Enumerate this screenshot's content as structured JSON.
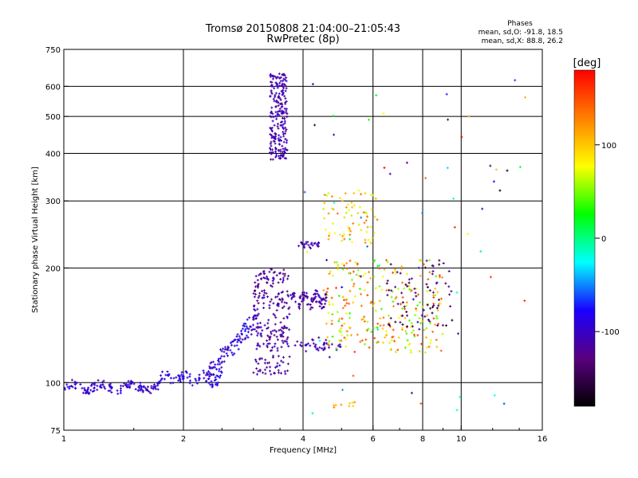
{
  "header": {
    "title": "Tromsø 20150808 21:04:00–21:05:43",
    "subtitle": "RwPretec (8p)"
  },
  "stats": {
    "heading": "Phases",
    "o_line": "mean, sd,O: -91.8, 18.5",
    "x_line": "mean, sd,X:  88.8, 26.2"
  },
  "colorbar": {
    "label": "[deg]",
    "range": [
      -180,
      180
    ],
    "ticks": [
      {
        "value": 100,
        "label": "100"
      },
      {
        "value": 0,
        "label": "0"
      },
      {
        "value": -100,
        "label": "-100"
      }
    ],
    "stops": [
      "#000000",
      "#5a0080",
      "#1a00ff",
      "#00ffff",
      "#00ff00",
      "#ffff00",
      "#ff8000",
      "#ff0000"
    ]
  },
  "chart_data": {
    "type": "scatter",
    "title": "Tromsø 20150808 21:04:00–21:05:43",
    "subtitle": "RwPretec (8p)",
    "xlabel": "Frequency [MHz]",
    "ylabel": "Stationary phase Virtual Height [km]",
    "x_scale": "log",
    "y_scale": "log",
    "xlim": [
      1,
      16
    ],
    "ylim": [
      75,
      750
    ],
    "x_ticks": [
      {
        "value": 1,
        "label": "1"
      },
      {
        "value": 2,
        "label": "2"
      },
      {
        "value": 4,
        "label": "4"
      },
      {
        "value": 6,
        "label": "6"
      },
      {
        "value": 8,
        "label": "8"
      },
      {
        "value": 10,
        "label": "10"
      },
      {
        "value": 16,
        "label": "16"
      }
    ],
    "y_ticks": [
      {
        "value": 75,
        "label": "75"
      },
      {
        "value": 100,
        "label": "100"
      },
      {
        "value": 200,
        "label": "200"
      },
      {
        "value": 300,
        "label": "300"
      },
      {
        "value": 400,
        "label": "400"
      },
      {
        "value": 500,
        "label": "500"
      },
      {
        "value": 600,
        "label": "600"
      },
      {
        "value": 750,
        "label": "750"
      }
    ],
    "grid_x": [
      2,
      4,
      6,
      8,
      10
    ],
    "grid_y": [
      100,
      200,
      300,
      400,
      500,
      600
    ],
    "color_scale": "phase [deg]",
    "clusters": [
      {
        "f": [
          1.0,
          1.75
        ],
        "h": [
          93,
          102
        ],
        "phase": [
          -115,
          -80
        ],
        "n": 140,
        "shape": "trace"
      },
      {
        "f": [
          1.75,
          2.5
        ],
        "h": [
          97,
          108
        ],
        "phase": [
          -110,
          -70
        ],
        "n": 80,
        "shape": "trace"
      },
      {
        "f": [
          2.3,
          3.1
        ],
        "h": [
          105,
          150
        ],
        "phase": [
          -115,
          -70
        ],
        "n": 110,
        "shape": "ramp"
      },
      {
        "f": [
          3.0,
          3.7
        ],
        "h": [
          105,
          200
        ],
        "phase": [
          -135,
          -95
        ],
        "n": 240,
        "shape": "fill"
      },
      {
        "f": [
          3.3,
          3.65
        ],
        "h": [
          385,
          650
        ],
        "phase": [
          -125,
          -95
        ],
        "n": 230,
        "shape": "column"
      },
      {
        "f": [
          3.7,
          4.6
        ],
        "h": [
          155,
          175
        ],
        "phase": [
          -130,
          -95
        ],
        "n": 90,
        "shape": "trace"
      },
      {
        "f": [
          3.9,
          4.4
        ],
        "h": [
          225,
          235
        ],
        "phase": [
          -115,
          -95
        ],
        "n": 25,
        "shape": "trace"
      },
      {
        "f": [
          3.8,
          5.0
        ],
        "h": [
          120,
          130
        ],
        "phase": [
          -120,
          -90
        ],
        "n": 40,
        "shape": "trace"
      },
      {
        "f": [
          4.5,
          6.2
        ],
        "h": [
          230,
          320
        ],
        "phase": [
          60,
          140
        ],
        "n": 70,
        "shape": "fill"
      },
      {
        "f": [
          4.5,
          9.0
        ],
        "h": [
          120,
          210
        ],
        "phase": [
          30,
          160
        ],
        "n": 260,
        "shape": "fill"
      },
      {
        "f": [
          6.5,
          9.5
        ],
        "h": [
          140,
          210
        ],
        "phase": [
          -170,
          -110
        ],
        "n": 70,
        "shape": "fill"
      },
      {
        "f": [
          4.6,
          5.4
        ],
        "h": [
          86,
          90
        ],
        "phase": [
          90,
          130
        ],
        "n": 10,
        "shape": "trace"
      },
      {
        "f": [
          4.0,
          14.5
        ],
        "h": [
          80,
          640
        ],
        "phase": [
          -180,
          180
        ],
        "n": 70,
        "shape": "sparse"
      }
    ]
  }
}
